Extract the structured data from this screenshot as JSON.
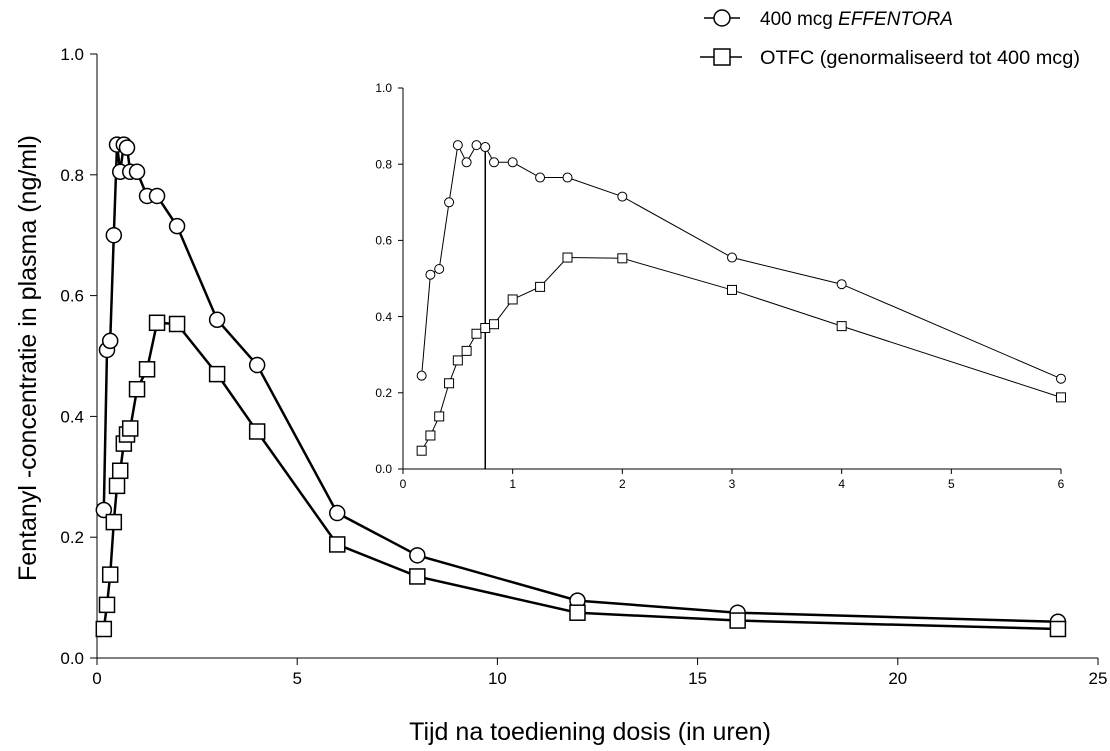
{
  "chart_data": [
    {
      "type": "line",
      "title": "",
      "xlabel": "Tijd na toediening dosis (in uren)",
      "ylabel": "Fentanyl -concentratie in plasma (ng/ml)",
      "xlim": [
        0,
        25
      ],
      "ylim": [
        0,
        1.0
      ],
      "x_ticks": [
        "0",
        "5",
        "10",
        "15",
        "20",
        "25"
      ],
      "y_ticks": [
        "0.0",
        "0.2",
        "0.4",
        "0.6",
        "0.8",
        "1.0"
      ],
      "grid": false,
      "legend_position": "top-right",
      "series": [
        {
          "name_prefix": "400 mcg ",
          "name_italic": "EFFENTORA",
          "marker": "circle",
          "color": "#000000",
          "x": [
            0.17,
            0.25,
            0.33,
            0.42,
            0.5,
            0.58,
            0.67,
            0.75,
            0.83,
            1,
            1.25,
            1.5,
            2,
            3,
            4,
            6,
            8,
            12,
            16,
            24
          ],
          "y": [
            0.245,
            0.51,
            0.525,
            0.7,
            0.85,
            0.805,
            0.85,
            0.845,
            0.805,
            0.805,
            0.765,
            0.765,
            0.715,
            0.56,
            0.485,
            0.24,
            0.17,
            0.095,
            0.075,
            0.06
          ]
        },
        {
          "name": "OTFC (genormaliseerd tot 400 mcg)",
          "marker": "square",
          "color": "#000000",
          "x": [
            0.17,
            0.25,
            0.33,
            0.42,
            0.5,
            0.58,
            0.67,
            0.75,
            0.83,
            1,
            1.25,
            1.5,
            2,
            3,
            4,
            6,
            8,
            12,
            16,
            24
          ],
          "y": [
            0.048,
            0.088,
            0.138,
            0.225,
            0.285,
            0.31,
            0.355,
            0.37,
            0.38,
            0.445,
            0.478,
            0.555,
            0.553,
            0.47,
            0.375,
            0.188,
            0.135,
            0.075,
            0.062,
            0.048
          ]
        }
      ]
    },
    {
      "type": "line",
      "title": "",
      "role": "inset",
      "xlim": [
        0,
        6
      ],
      "ylim": [
        0,
        1.0
      ],
      "x_ticks": [
        "0",
        "1",
        "2",
        "3",
        "4",
        "5",
        "6"
      ],
      "y_ticks": [
        "0.0",
        "0.2",
        "0.4",
        "0.6",
        "0.8",
        "1.0"
      ],
      "reference_line_x": 0.75,
      "series": [
        {
          "marker": "circle",
          "x": [
            0.17,
            0.25,
            0.33,
            0.42,
            0.5,
            0.58,
            0.67,
            0.75,
            0.83,
            1,
            1.25,
            1.5,
            2,
            3,
            4,
            6
          ],
          "y": [
            0.245,
            0.51,
            0.525,
            0.7,
            0.85,
            0.805,
            0.85,
            0.845,
            0.805,
            0.805,
            0.765,
            0.765,
            0.715,
            0.555,
            0.485,
            0.237
          ]
        },
        {
          "marker": "square",
          "x": [
            0.17,
            0.25,
            0.33,
            0.42,
            0.5,
            0.58,
            0.67,
            0.75,
            0.83,
            1,
            1.25,
            1.5,
            2,
            3,
            4,
            6
          ],
          "y": [
            0.048,
            0.088,
            0.138,
            0.225,
            0.285,
            0.31,
            0.355,
            0.37,
            0.38,
            0.445,
            0.478,
            0.555,
            0.553,
            0.47,
            0.375,
            0.188
          ]
        }
      ]
    }
  ]
}
